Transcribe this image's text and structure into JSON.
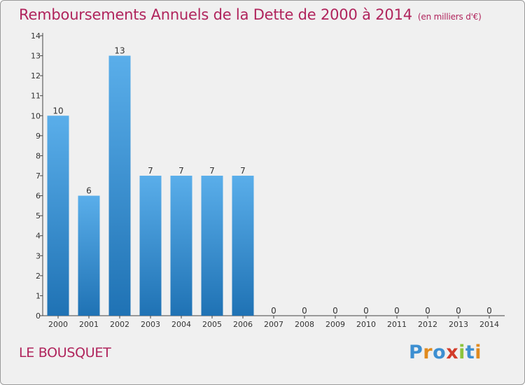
{
  "title": "Remboursements Annuels de la Dette de 2000 à 2014",
  "unit": "(en milliers d'€)",
  "commune": "LE BOUSQUET",
  "logo": {
    "letters": [
      "P",
      "r",
      "o",
      "x",
      "i",
      "t",
      "i"
    ],
    "colors": [
      "#3d8fd1",
      "#e08a1e",
      "#3d8fd1",
      "#d23c2a",
      "#8cc43c",
      "#3d8fd1",
      "#e08a1e"
    ]
  },
  "colors": {
    "bar_top": "#5aaeea",
    "bar_bottom": "#1f72b4",
    "text": "#b0245c",
    "axis": "#444444"
  },
  "chart_data": {
    "type": "bar",
    "categories": [
      "2000",
      "2001",
      "2002",
      "2003",
      "2004",
      "2005",
      "2006",
      "2007",
      "2008",
      "2009",
      "2010",
      "2011",
      "2012",
      "2013",
      "2014"
    ],
    "values": [
      10,
      6,
      13,
      7,
      7,
      7,
      7,
      0,
      0,
      0,
      0,
      0,
      0,
      0,
      0
    ],
    "data_labels": [
      "10",
      "6",
      "13",
      "7",
      "7",
      "7",
      "7",
      "0",
      "0",
      "0",
      "0",
      "0",
      "0",
      "0",
      "0"
    ],
    "yticks": [
      "0",
      "1",
      "2",
      "3",
      "4",
      "5",
      "6",
      "7",
      "8",
      "9",
      "10",
      "11",
      "12",
      "13",
      "14"
    ],
    "ylim": [
      0,
      14
    ],
    "grid": false
  }
}
